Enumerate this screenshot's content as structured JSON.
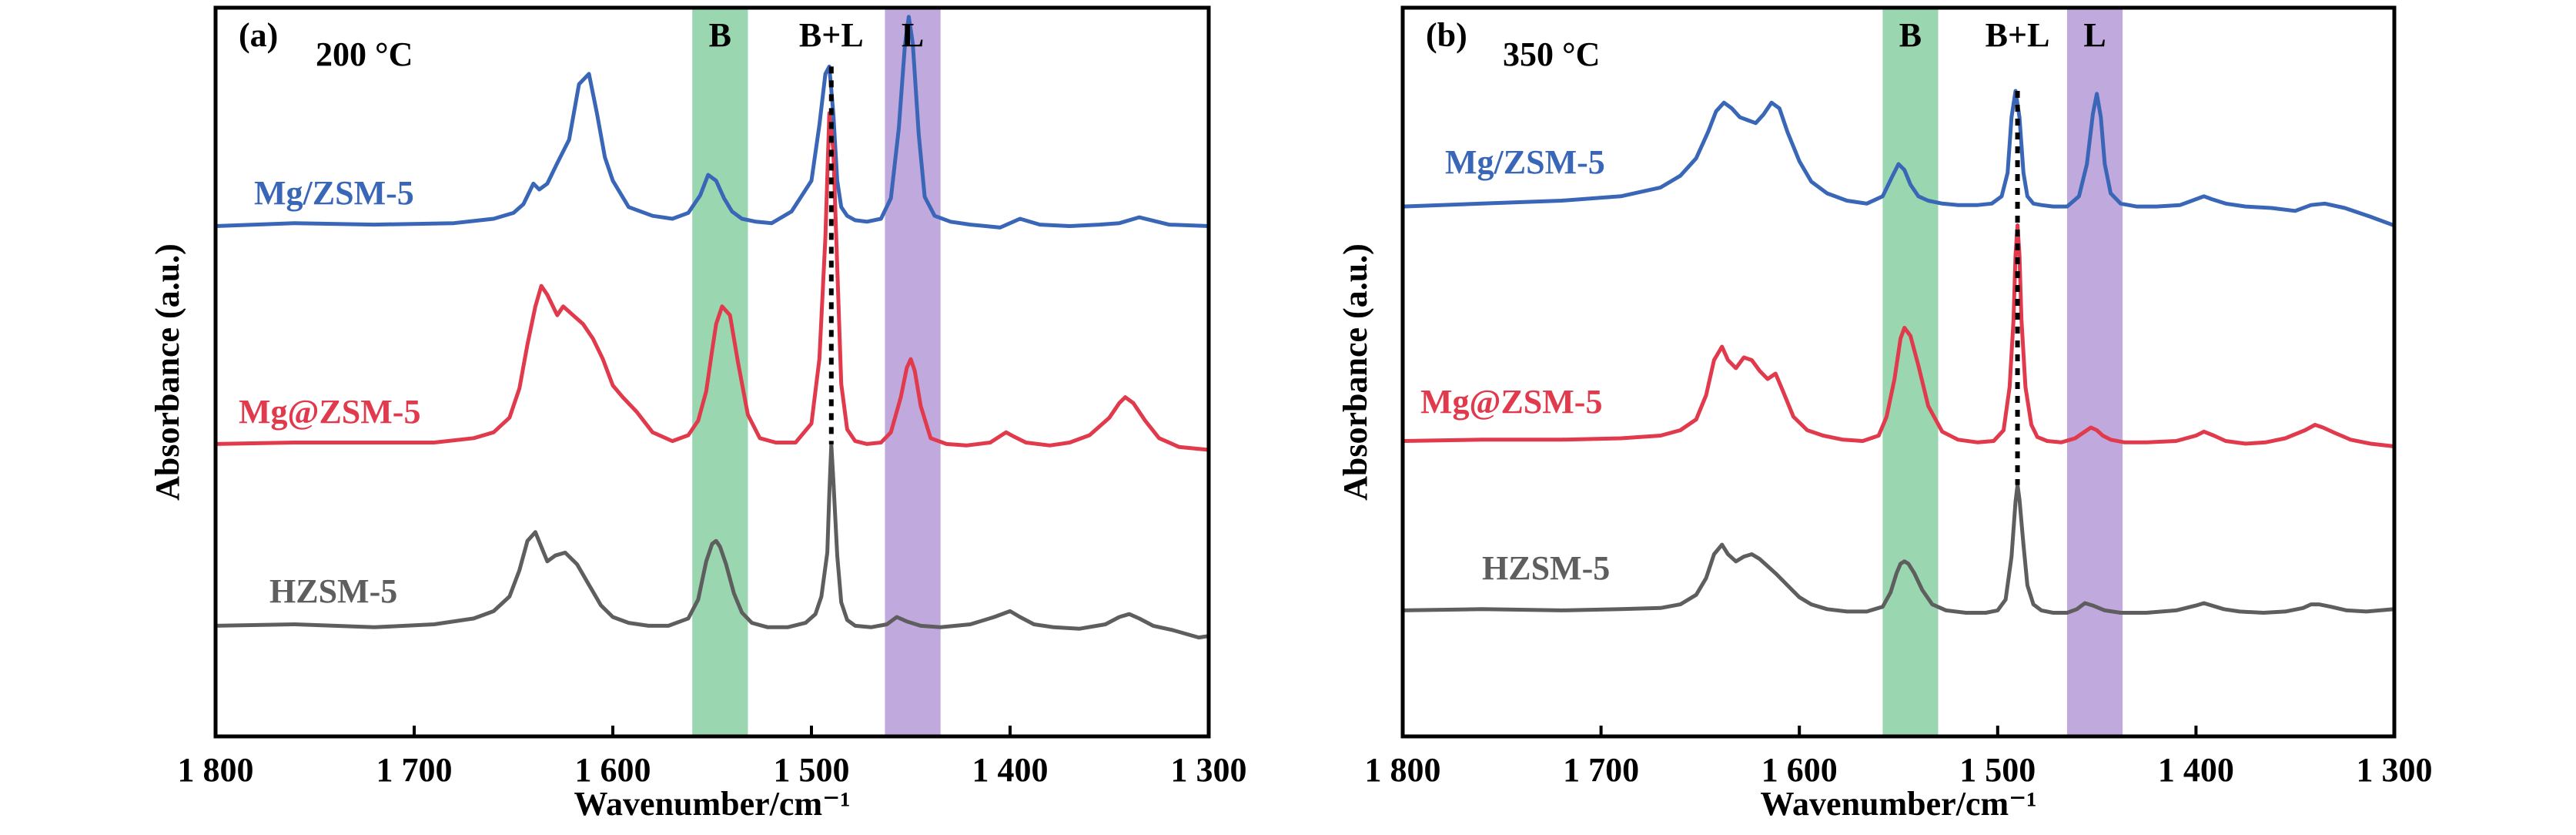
{
  "chart_data": [
    {
      "type": "line",
      "panel_label": "(a)",
      "temperature": "200 °C",
      "xlabel": "Wavenumber/cm⁻¹",
      "ylabel": "Absorbance (a.u.)",
      "xlim": [
        1800,
        1300
      ],
      "x_reversed": true,
      "x_ticks": [
        1800,
        1700,
        1600,
        1500,
        1400,
        1300
      ],
      "x_tick_labels": [
        "1 800",
        "1 700",
        "1 600",
        "1 500",
        "1 400",
        "1 300"
      ],
      "y_ticks": false,
      "grid": false,
      "bands": [
        {
          "label": "B",
          "from": 1560,
          "to": 1532,
          "color": "#8fd3a9"
        },
        {
          "label": "B+L",
          "at": 1490
        },
        {
          "label": "L",
          "from": 1463,
          "to": 1435,
          "color": "#b9a0d9"
        }
      ],
      "dashed_line_x": 1490,
      "series": [
        {
          "name": "Mg/ZSM-5",
          "color": "#3a66b8",
          "x": [
            1800,
            1760,
            1720,
            1680,
            1660,
            1650,
            1645,
            1640,
            1637,
            1633,
            1628,
            1622,
            1617,
            1612,
            1608,
            1604,
            1600,
            1592,
            1580,
            1570,
            1562,
            1556,
            1552,
            1548,
            1544,
            1540,
            1535,
            1528,
            1520,
            1510,
            1500,
            1496,
            1493,
            1491,
            1489,
            1487,
            1485,
            1482,
            1478,
            1472,
            1465,
            1460,
            1456,
            1453,
            1451,
            1449,
            1446,
            1443,
            1438,
            1430,
            1420,
            1405,
            1395,
            1385,
            1370,
            1355,
            1345,
            1335,
            1320,
            1300
          ],
          "y": [
            0.05,
            0.07,
            0.06,
            0.07,
            0.1,
            0.14,
            0.2,
            0.34,
            0.3,
            0.34,
            0.48,
            0.64,
            1.02,
            1.09,
            0.82,
            0.52,
            0.36,
            0.18,
            0.12,
            0.1,
            0.14,
            0.26,
            0.4,
            0.36,
            0.24,
            0.15,
            0.1,
            0.08,
            0.07,
            0.15,
            0.36,
            0.74,
            1.09,
            1.14,
            0.82,
            0.36,
            0.18,
            0.12,
            0.09,
            0.08,
            0.1,
            0.24,
            0.72,
            1.28,
            1.48,
            1.3,
            0.68,
            0.25,
            0.12,
            0.08,
            0.06,
            0.04,
            0.1,
            0.06,
            0.05,
            0.06,
            0.07,
            0.11,
            0.06,
            0.05
          ]
        },
        {
          "name": "Mg@ZSM-5",
          "color": "#e03a4c",
          "x": [
            1800,
            1760,
            1720,
            1690,
            1670,
            1660,
            1652,
            1647,
            1643,
            1639,
            1636,
            1633,
            1628,
            1625,
            1620,
            1615,
            1610,
            1605,
            1600,
            1595,
            1588,
            1580,
            1570,
            1562,
            1557,
            1553,
            1550,
            1548,
            1545,
            1541,
            1537,
            1532,
            1526,
            1518,
            1508,
            1500,
            1496,
            1493,
            1491,
            1489,
            1487,
            1485,
            1482,
            1478,
            1472,
            1465,
            1460,
            1455,
            1452,
            1450,
            1448,
            1445,
            1440,
            1432,
            1422,
            1410,
            1402,
            1398,
            1392,
            1380,
            1370,
            1360,
            1350,
            1345,
            1342,
            1338,
            1332,
            1325,
            1315,
            1300
          ],
          "y": [
            0.04,
            0.05,
            0.05,
            0.05,
            0.08,
            0.12,
            0.22,
            0.42,
            0.72,
            0.98,
            1.12,
            1.06,
            0.92,
            0.98,
            0.92,
            0.86,
            0.76,
            0.62,
            0.44,
            0.36,
            0.26,
            0.12,
            0.06,
            0.1,
            0.2,
            0.4,
            0.68,
            0.86,
            0.98,
            0.92,
            0.6,
            0.24,
            0.08,
            0.05,
            0.05,
            0.18,
            0.62,
            1.45,
            2.3,
            2.05,
            1.25,
            0.45,
            0.14,
            0.06,
            0.04,
            0.05,
            0.12,
            0.36,
            0.56,
            0.62,
            0.54,
            0.3,
            0.08,
            0.04,
            0.03,
            0.05,
            0.12,
            0.09,
            0.05,
            0.03,
            0.05,
            0.1,
            0.22,
            0.32,
            0.36,
            0.32,
            0.2,
            0.08,
            0.02,
            0.0
          ]
        },
        {
          "name": "HZSM-5",
          "color": "#5e5e5e",
          "x": [
            1800,
            1760,
            1720,
            1690,
            1670,
            1660,
            1652,
            1647,
            1643,
            1639,
            1636,
            1633,
            1629,
            1624,
            1618,
            1612,
            1606,
            1600,
            1592,
            1582,
            1572,
            1562,
            1557,
            1553,
            1550,
            1548,
            1546,
            1543,
            1539,
            1535,
            1530,
            1522,
            1512,
            1503,
            1498,
            1495,
            1492,
            1491,
            1490,
            1489,
            1487,
            1485,
            1482,
            1478,
            1470,
            1462,
            1457,
            1452,
            1445,
            1435,
            1420,
            1408,
            1400,
            1395,
            1388,
            1378,
            1365,
            1352,
            1345,
            1340,
            1335,
            1328,
            1318,
            1305,
            1300
          ],
          "y": [
            0.04,
            0.05,
            0.03,
            0.05,
            0.09,
            0.14,
            0.24,
            0.42,
            0.62,
            0.68,
            0.58,
            0.48,
            0.52,
            0.54,
            0.46,
            0.32,
            0.18,
            0.1,
            0.06,
            0.04,
            0.04,
            0.09,
            0.22,
            0.48,
            0.6,
            0.62,
            0.58,
            0.46,
            0.26,
            0.13,
            0.06,
            0.03,
            0.03,
            0.06,
            0.12,
            0.24,
            0.54,
            0.94,
            1.28,
            1.04,
            0.52,
            0.2,
            0.08,
            0.04,
            0.03,
            0.05,
            0.1,
            0.07,
            0.04,
            0.03,
            0.05,
            0.1,
            0.14,
            0.1,
            0.05,
            0.03,
            0.02,
            0.05,
            0.1,
            0.12,
            0.09,
            0.04,
            0.01,
            -0.04,
            -0.03
          ]
        }
      ]
    },
    {
      "type": "line",
      "panel_label": "(b)",
      "temperature": "350 °C",
      "xlabel": "Wavenumber/cm⁻¹",
      "ylabel": "Absorbance (a.u.)",
      "xlim": [
        1800,
        1300
      ],
      "x_reversed": true,
      "x_ticks": [
        1800,
        1700,
        1600,
        1500,
        1400,
        1300
      ],
      "x_tick_labels": [
        "1 800",
        "1 700",
        "1 600",
        "1 500",
        "1 400",
        "1 300"
      ],
      "y_ticks": false,
      "grid": false,
      "bands": [
        {
          "label": "B",
          "from": 1558,
          "to": 1530,
          "color": "#8fd3a9"
        },
        {
          "label": "B+L",
          "at": 1490
        },
        {
          "label": "L",
          "from": 1465,
          "to": 1437,
          "color": "#b9a0d9"
        }
      ],
      "dashed_line_x": 1490,
      "series": [
        {
          "name": "Mg/ZSM-5",
          "color": "#3a66b8",
          "x": [
            1800,
            1760,
            1720,
            1690,
            1670,
            1660,
            1652,
            1646,
            1642,
            1638,
            1634,
            1630,
            1626,
            1622,
            1618,
            1614,
            1610,
            1606,
            1600,
            1594,
            1586,
            1576,
            1566,
            1558,
            1553,
            1550,
            1547,
            1544,
            1540,
            1535,
            1528,
            1520,
            1510,
            1503,
            1498,
            1495,
            1493,
            1491,
            1489,
            1487,
            1485,
            1482,
            1478,
            1472,
            1465,
            1459,
            1455,
            1452,
            1450,
            1448,
            1446,
            1443,
            1438,
            1430,
            1420,
            1408,
            1400,
            1396,
            1392,
            1385,
            1375,
            1362,
            1350,
            1342,
            1335,
            1325,
            1312,
            1300
          ],
          "y": [
            0.01,
            0.03,
            0.05,
            0.08,
            0.14,
            0.22,
            0.34,
            0.52,
            0.66,
            0.72,
            0.68,
            0.62,
            0.6,
            0.58,
            0.64,
            0.72,
            0.68,
            0.52,
            0.32,
            0.18,
            0.1,
            0.05,
            0.03,
            0.08,
            0.22,
            0.3,
            0.26,
            0.16,
            0.08,
            0.05,
            0.03,
            0.02,
            0.02,
            0.03,
            0.08,
            0.24,
            0.62,
            0.8,
            0.62,
            0.24,
            0.08,
            0.03,
            0.02,
            0.01,
            0.01,
            0.08,
            0.3,
            0.64,
            0.78,
            0.62,
            0.3,
            0.1,
            0.03,
            0.01,
            0.01,
            0.02,
            0.06,
            0.08,
            0.06,
            0.03,
            0.01,
            0.0,
            -0.02,
            0.02,
            0.03,
            0.0,
            -0.06,
            -0.12
          ]
        },
        {
          "name": "Mg@ZSM-5",
          "color": "#e03a4c",
          "x": [
            1800,
            1760,
            1720,
            1690,
            1670,
            1660,
            1652,
            1647,
            1643,
            1639,
            1636,
            1632,
            1628,
            1624,
            1620,
            1616,
            1612,
            1608,
            1603,
            1596,
            1588,
            1578,
            1568,
            1560,
            1556,
            1552,
            1549,
            1547,
            1544,
            1540,
            1535,
            1528,
            1520,
            1510,
            1502,
            1497,
            1494,
            1492,
            1491,
            1490,
            1489,
            1488,
            1486,
            1483,
            1480,
            1475,
            1468,
            1461,
            1457,
            1453,
            1450,
            1447,
            1443,
            1436,
            1425,
            1410,
            1400,
            1396,
            1391,
            1385,
            1375,
            1365,
            1355,
            1345,
            1340,
            1336,
            1330,
            1322,
            1312,
            1300
          ],
          "y": [
            0.02,
            0.03,
            0.03,
            0.04,
            0.06,
            0.1,
            0.18,
            0.36,
            0.62,
            0.72,
            0.62,
            0.56,
            0.64,
            0.62,
            0.54,
            0.48,
            0.52,
            0.38,
            0.2,
            0.1,
            0.06,
            0.03,
            0.02,
            0.06,
            0.2,
            0.48,
            0.78,
            0.86,
            0.8,
            0.58,
            0.28,
            0.09,
            0.03,
            0.01,
            0.02,
            0.1,
            0.42,
            0.92,
            1.4,
            1.62,
            1.4,
            0.92,
            0.42,
            0.14,
            0.05,
            0.02,
            0.01,
            0.04,
            0.08,
            0.12,
            0.1,
            0.06,
            0.03,
            0.01,
            0.01,
            0.02,
            0.06,
            0.09,
            0.06,
            0.02,
            0.0,
            0.01,
            0.04,
            0.1,
            0.14,
            0.12,
            0.08,
            0.03,
            0.0,
            -0.02
          ]
        },
        {
          "name": "HZSM-5",
          "color": "#5e5e5e",
          "x": [
            1800,
            1760,
            1720,
            1690,
            1670,
            1660,
            1652,
            1647,
            1643,
            1639,
            1636,
            1632,
            1628,
            1624,
            1620,
            1616,
            1612,
            1606,
            1600,
            1594,
            1586,
            1576,
            1566,
            1558,
            1554,
            1551,
            1549,
            1547,
            1545,
            1542,
            1538,
            1533,
            1526,
            1516,
            1506,
            1500,
            1496,
            1493,
            1491,
            1490,
            1489,
            1487,
            1485,
            1482,
            1478,
            1472,
            1465,
            1460,
            1456,
            1452,
            1446,
            1438,
            1425,
            1410,
            1400,
            1396,
            1392,
            1386,
            1378,
            1366,
            1355,
            1346,
            1342,
            1338,
            1332,
            1324,
            1314,
            1300
          ],
          "y": [
            0.03,
            0.04,
            0.03,
            0.04,
            0.05,
            0.08,
            0.16,
            0.3,
            0.5,
            0.58,
            0.5,
            0.44,
            0.48,
            0.5,
            0.46,
            0.4,
            0.34,
            0.24,
            0.14,
            0.08,
            0.04,
            0.02,
            0.02,
            0.06,
            0.18,
            0.34,
            0.42,
            0.44,
            0.42,
            0.34,
            0.2,
            0.08,
            0.03,
            0.01,
            0.01,
            0.03,
            0.12,
            0.48,
            0.94,
            1.08,
            0.96,
            0.58,
            0.24,
            0.08,
            0.03,
            0.01,
            0.01,
            0.04,
            0.09,
            0.07,
            0.03,
            0.01,
            0.01,
            0.03,
            0.07,
            0.09,
            0.07,
            0.04,
            0.02,
            0.01,
            0.02,
            0.05,
            0.08,
            0.08,
            0.06,
            0.03,
            0.02,
            0.04
          ]
        }
      ]
    }
  ]
}
